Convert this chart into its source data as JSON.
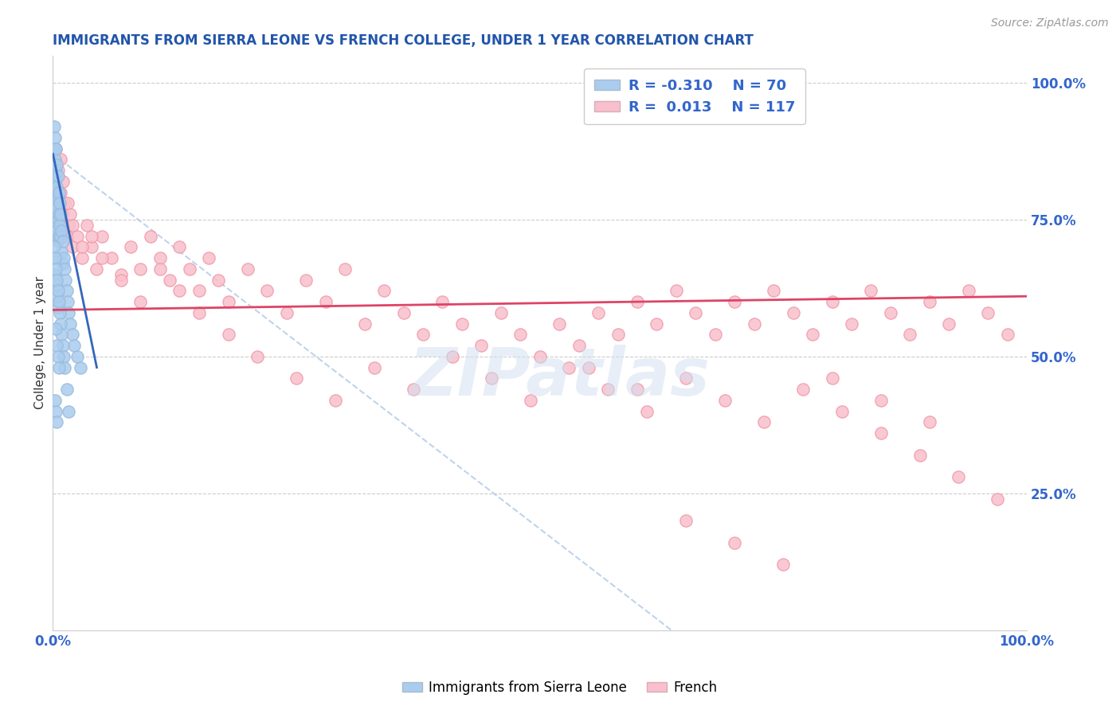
{
  "title": "IMMIGRANTS FROM SIERRA LEONE VS FRENCH COLLEGE, UNDER 1 YEAR CORRELATION CHART",
  "source": "Source: ZipAtlas.com",
  "ylabel": "College, Under 1 year",
  "right_yticks": [
    "100.0%",
    "75.0%",
    "50.0%",
    "25.0%"
  ],
  "right_ytick_vals": [
    1.0,
    0.75,
    0.5,
    0.25
  ],
  "legend_r1": "R = -0.310",
  "legend_n1": "N = 70",
  "legend_r2": "R =  0.013",
  "legend_n2": "N = 117",
  "blue_color": "#99bbdd",
  "blue_fill": "#aaccee",
  "pink_color": "#f09aaa",
  "pink_fill": "#f8c0cc",
  "blue_line_color": "#3366bb",
  "pink_line_color": "#dd4466",
  "title_color": "#2255aa",
  "legend_text_color": "#3366cc",
  "watermark": "ZIPatlas",
  "background_color": "#ffffff",
  "blue_scatter_x": [
    0.001,
    0.001,
    0.001,
    0.001,
    0.002,
    0.002,
    0.002,
    0.002,
    0.002,
    0.003,
    0.003,
    0.003,
    0.003,
    0.003,
    0.003,
    0.004,
    0.004,
    0.004,
    0.004,
    0.005,
    0.005,
    0.005,
    0.005,
    0.006,
    0.006,
    0.006,
    0.007,
    0.007,
    0.008,
    0.008,
    0.009,
    0.009,
    0.01,
    0.01,
    0.011,
    0.012,
    0.013,
    0.014,
    0.015,
    0.016,
    0.018,
    0.02,
    0.022,
    0.025,
    0.028,
    0.001,
    0.002,
    0.002,
    0.003,
    0.003,
    0.004,
    0.004,
    0.005,
    0.005,
    0.006,
    0.007,
    0.008,
    0.009,
    0.01,
    0.011,
    0.012,
    0.014,
    0.016,
    0.003,
    0.004,
    0.005,
    0.006,
    0.002,
    0.003,
    0.004
  ],
  "blue_scatter_y": [
    0.92,
    0.88,
    0.83,
    0.78,
    0.9,
    0.86,
    0.82,
    0.78,
    0.74,
    0.88,
    0.84,
    0.8,
    0.76,
    0.72,
    0.68,
    0.85,
    0.81,
    0.77,
    0.73,
    0.83,
    0.79,
    0.75,
    0.71,
    0.8,
    0.76,
    0.72,
    0.78,
    0.74,
    0.76,
    0.72,
    0.73,
    0.69,
    0.71,
    0.67,
    0.68,
    0.66,
    0.64,
    0.62,
    0.6,
    0.58,
    0.56,
    0.54,
    0.52,
    0.5,
    0.48,
    0.7,
    0.68,
    0.65,
    0.66,
    0.63,
    0.64,
    0.61,
    0.62,
    0.59,
    0.6,
    0.58,
    0.56,
    0.54,
    0.52,
    0.5,
    0.48,
    0.44,
    0.4,
    0.55,
    0.52,
    0.5,
    0.48,
    0.42,
    0.4,
    0.38
  ],
  "pink_scatter_x": [
    0.001,
    0.002,
    0.003,
    0.004,
    0.005,
    0.006,
    0.007,
    0.008,
    0.009,
    0.01,
    0.012,
    0.014,
    0.016,
    0.018,
    0.02,
    0.025,
    0.03,
    0.035,
    0.04,
    0.045,
    0.05,
    0.06,
    0.07,
    0.08,
    0.09,
    0.1,
    0.11,
    0.12,
    0.13,
    0.14,
    0.15,
    0.16,
    0.17,
    0.18,
    0.2,
    0.22,
    0.24,
    0.26,
    0.28,
    0.3,
    0.32,
    0.34,
    0.36,
    0.38,
    0.4,
    0.42,
    0.44,
    0.46,
    0.48,
    0.5,
    0.52,
    0.54,
    0.56,
    0.58,
    0.6,
    0.62,
    0.64,
    0.66,
    0.68,
    0.7,
    0.72,
    0.74,
    0.76,
    0.78,
    0.8,
    0.82,
    0.84,
    0.86,
    0.88,
    0.9,
    0.92,
    0.94,
    0.96,
    0.98,
    0.003,
    0.005,
    0.008,
    0.01,
    0.015,
    0.02,
    0.03,
    0.04,
    0.05,
    0.07,
    0.09,
    0.11,
    0.13,
    0.15,
    0.18,
    0.21,
    0.25,
    0.29,
    0.33,
    0.37,
    0.41,
    0.45,
    0.49,
    0.53,
    0.57,
    0.61,
    0.65,
    0.69,
    0.73,
    0.77,
    0.81,
    0.85,
    0.89,
    0.93,
    0.97,
    0.55,
    0.6,
    0.65,
    0.7,
    0.75,
    0.8,
    0.85,
    0.9
  ],
  "pink_scatter_y": [
    0.8,
    0.78,
    0.82,
    0.76,
    0.79,
    0.75,
    0.77,
    0.8,
    0.74,
    0.76,
    0.78,
    0.72,
    0.74,
    0.76,
    0.7,
    0.72,
    0.68,
    0.74,
    0.7,
    0.66,
    0.72,
    0.68,
    0.65,
    0.7,
    0.66,
    0.72,
    0.68,
    0.64,
    0.7,
    0.66,
    0.62,
    0.68,
    0.64,
    0.6,
    0.66,
    0.62,
    0.58,
    0.64,
    0.6,
    0.66,
    0.56,
    0.62,
    0.58,
    0.54,
    0.6,
    0.56,
    0.52,
    0.58,
    0.54,
    0.5,
    0.56,
    0.52,
    0.58,
    0.54,
    0.6,
    0.56,
    0.62,
    0.58,
    0.54,
    0.6,
    0.56,
    0.62,
    0.58,
    0.54,
    0.6,
    0.56,
    0.62,
    0.58,
    0.54,
    0.6,
    0.56,
    0.62,
    0.58,
    0.54,
    0.88,
    0.84,
    0.86,
    0.82,
    0.78,
    0.74,
    0.7,
    0.72,
    0.68,
    0.64,
    0.6,
    0.66,
    0.62,
    0.58,
    0.54,
    0.5,
    0.46,
    0.42,
    0.48,
    0.44,
    0.5,
    0.46,
    0.42,
    0.48,
    0.44,
    0.4,
    0.46,
    0.42,
    0.38,
    0.44,
    0.4,
    0.36,
    0.32,
    0.28,
    0.24,
    0.48,
    0.44,
    0.2,
    0.16,
    0.12,
    0.46,
    0.42,
    0.38
  ]
}
